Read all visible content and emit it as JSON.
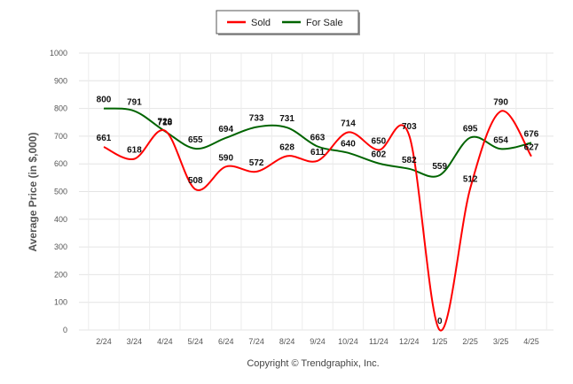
{
  "chart_data": {
    "type": "line",
    "title": "",
    "xlabel": "",
    "ylabel": "Average Price (in $,000)",
    "ylim": [
      0,
      1000
    ],
    "yticks": [
      0,
      100,
      200,
      300,
      400,
      500,
      600,
      700,
      800,
      900,
      1000
    ],
    "grid": true,
    "legend_position": "top-center",
    "categories": [
      "2/24",
      "3/24",
      "4/24",
      "5/24",
      "6/24",
      "7/24",
      "8/24",
      "9/24",
      "10/24",
      "11/24",
      "12/24",
      "1/25",
      "2/25",
      "3/25",
      "4/25"
    ],
    "series": [
      {
        "name": "Sold",
        "color": "#ff0000",
        "values": [
          661,
          618,
          720,
          508,
          590,
          572,
          628,
          611,
          714,
          650,
          703,
          0,
          512,
          790,
          627
        ],
        "labels": [
          "661",
          "618",
          "720",
          "508",
          "590",
          "572",
          "628",
          "611",
          "714",
          "650",
          "703",
          "0",
          "512",
          "790",
          "627"
        ]
      },
      {
        "name": "For Sale",
        "color": "#006400",
        "values": [
          800,
          791,
          718,
          655,
          694,
          733,
          731,
          663,
          640,
          602,
          582,
          559,
          695,
          654,
          676
        ],
        "labels": [
          "800",
          "791",
          "718",
          "655",
          "694",
          "733",
          "731",
          "663",
          "640",
          "602",
          "582",
          "559",
          "695",
          "654",
          "676"
        ]
      }
    ],
    "footer": "Copyright © Trendgraphix, Inc."
  }
}
